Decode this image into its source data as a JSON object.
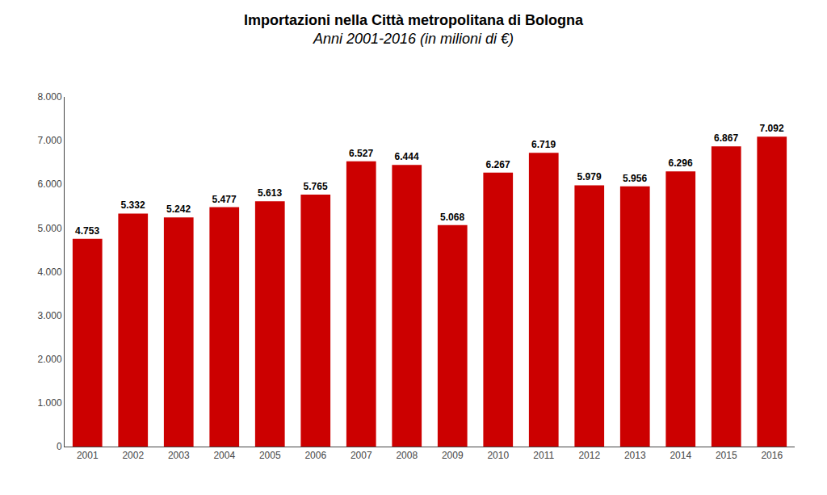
{
  "chart_data": {
    "type": "bar",
    "title": "Importazioni nella Città metropolitana di Bologna",
    "subtitle": "Anni 2001-2016 (in milioni di €)",
    "categories": [
      "2001",
      "2002",
      "2003",
      "2004",
      "2005",
      "2006",
      "2007",
      "2008",
      "2009",
      "2010",
      "2011",
      "2012",
      "2013",
      "2014",
      "2015",
      "2016"
    ],
    "values": [
      4753,
      5332,
      5242,
      5477,
      5613,
      5765,
      6527,
      6444,
      5068,
      6267,
      6719,
      5979,
      5956,
      6296,
      6867,
      7092
    ],
    "value_labels": [
      "4.753",
      "5.332",
      "5.242",
      "5.477",
      "5.613",
      "5.765",
      "6.527",
      "6.444",
      "5.068",
      "6.267",
      "6.719",
      "5.979",
      "5.956",
      "6.296",
      "6.867",
      "7.092"
    ],
    "data_labels": true,
    "color": "#CC0000",
    "ylim": [
      0,
      8000
    ],
    "yticks": [
      0,
      {
        "value": 1000,
        "label": "1.000"
      },
      {
        "value": 2000,
        "label": "2.000"
      },
      {
        "value": 3000,
        "label": "3.000"
      },
      {
        "value": 4000,
        "label": "4.000"
      },
      {
        "value": 5000,
        "label": "5.000"
      },
      {
        "value": 6000,
        "label": "6.000"
      },
      {
        "value": 7000,
        "label": "7.000"
      },
      {
        "value": 8000,
        "label": "8.000"
      }
    ],
    "grid": false
  }
}
